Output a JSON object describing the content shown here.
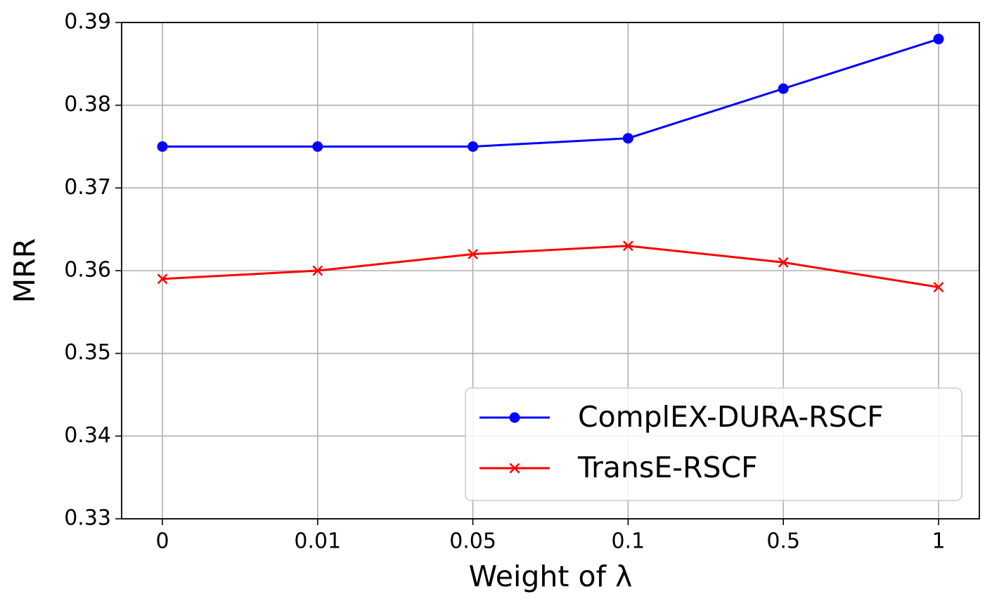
{
  "chart_data": {
    "type": "line",
    "x_label": "Weight of λ",
    "y_label": "MRR",
    "categories": [
      "0",
      "0.01",
      "0.05",
      "0.1",
      "0.5",
      "1"
    ],
    "series": [
      {
        "name": "ComplEX-DURA-RSCF",
        "color": "#0000ff",
        "marker": "circle",
        "values": [
          0.375,
          0.375,
          0.375,
          0.376,
          0.382,
          0.388
        ]
      },
      {
        "name": "TransE-RSCF",
        "color": "#ff0000",
        "marker": "x",
        "values": [
          0.359,
          0.36,
          0.362,
          0.363,
          0.361,
          0.358
        ]
      }
    ],
    "ylim": [
      0.33,
      0.39
    ],
    "yticks": [
      0.33,
      0.34,
      0.35,
      0.36,
      0.37,
      0.38,
      0.39
    ],
    "grid": true,
    "legend": "lower right"
  }
}
